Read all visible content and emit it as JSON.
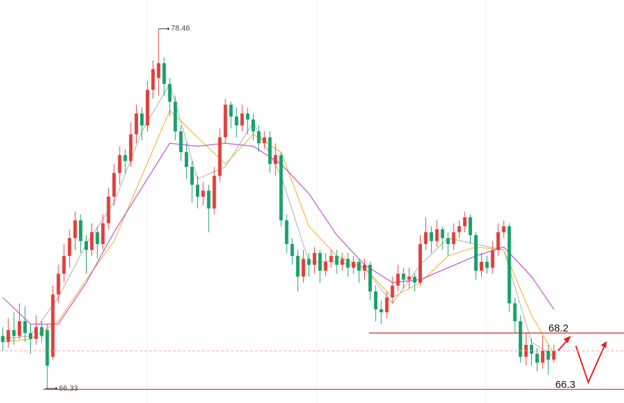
{
  "chart_data": {
    "type": "candlestick",
    "ylim": [
      65.84,
      79.43
    ],
    "up_color": "#e0403a",
    "down_color": "#19a06c",
    "ohlc": [
      [
        68.1,
        68.4,
        67.6,
        67.9
      ],
      [
        67.9,
        68.7,
        67.7,
        68.3
      ],
      [
        68.3,
        68.9,
        67.8,
        68.1
      ],
      [
        68.1,
        69.2,
        68.0,
        68.6
      ],
      [
        68.6,
        69.1,
        67.9,
        68.2
      ],
      [
        68.2,
        68.5,
        67.5,
        68.0
      ],
      [
        68.0,
        68.8,
        67.8,
        68.4
      ],
      [
        68.4,
        68.6,
        67.9,
        68.1
      ],
      [
        68.3,
        68.5,
        66.33,
        67.1
      ],
      [
        67.4,
        69.8,
        67.3,
        69.5
      ],
      [
        69.5,
        70.5,
        69.2,
        70.2
      ],
      [
        70.2,
        71.2,
        69.9,
        70.8
      ],
      [
        70.8,
        71.7,
        70.4,
        71.4
      ],
      [
        71.4,
        72.3,
        71.0,
        72.0
      ],
      [
        72.0,
        72.2,
        70.9,
        71.3
      ],
      [
        71.3,
        71.5,
        70.2,
        71.0
      ],
      [
        71.0,
        71.9,
        70.8,
        71.6
      ],
      [
        71.6,
        71.8,
        70.7,
        71.2
      ],
      [
        71.2,
        72.2,
        71.0,
        71.9
      ],
      [
        71.9,
        73.1,
        71.7,
        72.8
      ],
      [
        72.8,
        73.9,
        72.5,
        73.6
      ],
      [
        73.6,
        74.5,
        73.2,
        74.2
      ],
      [
        74.2,
        74.4,
        73.6,
        74.0
      ],
      [
        74.0,
        75.3,
        73.8,
        74.9
      ],
      [
        74.9,
        75.9,
        74.6,
        75.6
      ],
      [
        75.6,
        75.8,
        74.7,
        75.2
      ],
      [
        75.2,
        76.7,
        75.0,
        76.4
      ],
      [
        76.4,
        77.4,
        76.1,
        77.1
      ],
      [
        76.8,
        78.46,
        76.2,
        77.3
      ],
      [
        77.3,
        77.5,
        76.2,
        76.6
      ],
      [
        76.6,
        76.8,
        75.5,
        76.0
      ],
      [
        76.0,
        76.2,
        74.7,
        75.0
      ],
      [
        75.0,
        75.2,
        74.0,
        74.3
      ],
      [
        74.3,
        74.6,
        73.4,
        73.8
      ],
      [
        73.8,
        74.0,
        72.6,
        73.2
      ],
      [
        73.2,
        73.5,
        72.4,
        72.8
      ],
      [
        72.8,
        73.3,
        72.5,
        73.0
      ],
      [
        73.0,
        73.2,
        71.6,
        72.4
      ],
      [
        72.4,
        73.8,
        72.2,
        73.5
      ],
      [
        73.5,
        75.1,
        73.3,
        74.8
      ],
      [
        74.8,
        76.1,
        74.6,
        75.9
      ],
      [
        75.9,
        76.0,
        75.1,
        75.5
      ],
      [
        75.5,
        75.8,
        74.8,
        75.2
      ],
      [
        75.2,
        75.9,
        75.0,
        75.6
      ],
      [
        75.6,
        75.8,
        74.9,
        75.4
      ],
      [
        75.4,
        75.6,
        74.7,
        75.0
      ],
      [
        75.0,
        75.2,
        74.3,
        74.6
      ],
      [
        74.6,
        75.0,
        74.4,
        74.8
      ],
      [
        74.8,
        75.0,
        73.6,
        73.9
      ],
      [
        73.9,
        74.6,
        73.5,
        74.2
      ],
      [
        74.2,
        74.3,
        71.8,
        72.0
      ],
      [
        72.0,
        72.2,
        70.9,
        71.2
      ],
      [
        71.2,
        71.4,
        70.5,
        70.8
      ],
      [
        70.8,
        71.0,
        69.6,
        70.1
      ],
      [
        70.1,
        71.0,
        69.9,
        70.7
      ],
      [
        70.7,
        70.9,
        70.1,
        70.5
      ],
      [
        70.5,
        71.1,
        70.2,
        70.9
      ],
      [
        70.9,
        71.0,
        69.9,
        70.3
      ],
      [
        70.3,
        70.9,
        70.1,
        70.6
      ],
      [
        70.6,
        71.0,
        70.4,
        70.8
      ],
      [
        70.8,
        71.0,
        70.2,
        70.5
      ],
      [
        70.5,
        70.9,
        70.3,
        70.7
      ],
      [
        70.7,
        70.9,
        70.1,
        70.4
      ],
      [
        70.4,
        70.8,
        70.2,
        70.6
      ],
      [
        70.6,
        70.7,
        69.9,
        70.3
      ],
      [
        70.3,
        70.7,
        70.0,
        70.5
      ],
      [
        70.5,
        70.6,
        69.3,
        69.6
      ],
      [
        69.6,
        69.8,
        68.6,
        69.0
      ],
      [
        69.0,
        69.3,
        68.5,
        68.9
      ],
      [
        68.9,
        69.6,
        68.7,
        69.4
      ],
      [
        69.4,
        70.1,
        69.2,
        69.8
      ],
      [
        69.8,
        70.5,
        69.6,
        70.2
      ],
      [
        70.2,
        70.4,
        69.7,
        70.0
      ],
      [
        70.0,
        70.4,
        69.7,
        70.1
      ],
      [
        70.1,
        70.2,
        69.6,
        69.9
      ],
      [
        69.9,
        71.5,
        69.8,
        71.2
      ],
      [
        71.2,
        72.1,
        71.0,
        71.6
      ],
      [
        71.6,
        71.8,
        70.9,
        71.3
      ],
      [
        71.3,
        72.0,
        71.1,
        71.7
      ],
      [
        71.7,
        71.8,
        71.0,
        71.4
      ],
      [
        71.4,
        71.6,
        70.8,
        71.2
      ],
      [
        71.2,
        71.9,
        71.0,
        71.6
      ],
      [
        71.6,
        72.0,
        71.4,
        71.8
      ],
      [
        71.8,
        72.3,
        71.6,
        72.1
      ],
      [
        72.1,
        72.2,
        71.2,
        71.5
      ],
      [
        71.5,
        71.6,
        70.0,
        70.3
      ],
      [
        70.3,
        70.9,
        70.1,
        70.6
      ],
      [
        70.6,
        70.8,
        70.2,
        70.4
      ],
      [
        70.4,
        71.3,
        70.2,
        71.0
      ],
      [
        71.0,
        71.9,
        70.8,
        71.6
      ],
      [
        71.6,
        72.0,
        71.4,
        71.8
      ],
      [
        71.8,
        71.9,
        68.9,
        69.2
      ],
      [
        69.2,
        69.4,
        68.2,
        68.6
      ],
      [
        68.6,
        68.8,
        67.2,
        67.4
      ],
      [
        67.4,
        68.2,
        67.1,
        67.8
      ],
      [
        67.8,
        68.0,
        67.1,
        67.5
      ],
      [
        67.5,
        67.7,
        66.9,
        67.2
      ],
      [
        67.2,
        68.1,
        67.0,
        67.6
      ],
      [
        67.6,
        67.8,
        66.8,
        67.3
      ],
      [
        67.3,
        67.8,
        67.2,
        67.6
      ]
    ],
    "moving_averages": [
      {
        "color": "#b8b8b8",
        "x": [
          0,
          5,
          10,
          15,
          20,
          25,
          30,
          35,
          40,
          45,
          50,
          55,
          60,
          65,
          70,
          75,
          80,
          85,
          90,
          95,
          99
        ],
        "values": [
          68.0,
          68.1,
          69.4,
          71.2,
          72.6,
          75.0,
          76.6,
          73.4,
          73.8,
          75.3,
          73.5,
          70.6,
          70.6,
          70.4,
          69.2,
          70.5,
          71.4,
          71.2,
          71.0,
          67.9,
          67.4
        ]
      },
      {
        "color": "#f0b840",
        "x": [
          0,
          5,
          10,
          15,
          20,
          25,
          30,
          35,
          40,
          45,
          50,
          55,
          60,
          65,
          70,
          75,
          80,
          85,
          90,
          95,
          99
        ],
        "values": [
          67.9,
          68.0,
          68.6,
          70.0,
          71.3,
          73.5,
          75.7,
          74.8,
          73.9,
          74.9,
          74.3,
          71.8,
          70.8,
          70.4,
          69.4,
          69.9,
          70.8,
          71.1,
          71.0,
          68.8,
          67.5
        ]
      },
      {
        "color": "#c050c8",
        "x": [
          0,
          5,
          10,
          15,
          20,
          25,
          30,
          35,
          40,
          45,
          50,
          55,
          60,
          65,
          70,
          75,
          80,
          85,
          90,
          95,
          99
        ],
        "values": [
          69.4,
          68.5,
          68.5,
          69.9,
          71.6,
          73.1,
          74.6,
          74.5,
          74.6,
          74.5,
          73.9,
          72.9,
          71.5,
          70.5,
          69.9,
          70.0,
          70.4,
          70.8,
          71.1,
          70.1,
          69.0
        ]
      }
    ],
    "levels": [
      {
        "value": 68.2,
        "color": "#d42020"
      },
      {
        "value": 66.3,
        "color": "#d42020"
      }
    ]
  }
}
